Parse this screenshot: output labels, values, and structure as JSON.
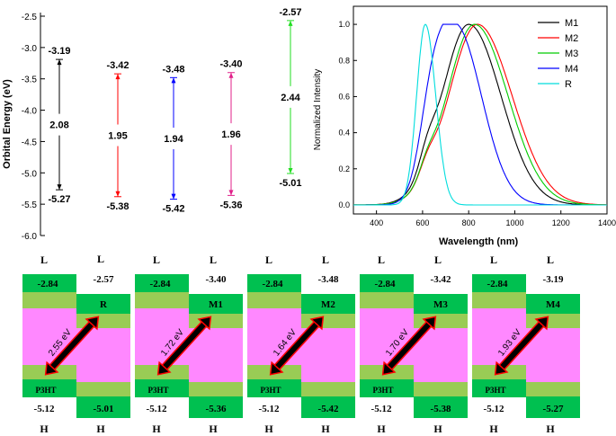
{
  "chart_data": [
    {
      "type": "energy-level diagram",
      "ylabel": "Orbital Energy (eV)",
      "ylim": [
        -6.0,
        -2.5
      ],
      "yticks": [
        "-2.5",
        "-3.0",
        "-3.5",
        "-4.0",
        "-4.5",
        "-5.0",
        "-5.5",
        "-6.0"
      ],
      "molecules": [
        {
          "lumo": -3.19,
          "homo": -5.27,
          "gap": 2.08,
          "lumo_label": "-3.19",
          "homo_label": "-5.27",
          "gap_label": "2.08",
          "color": "#000000"
        },
        {
          "lumo": -3.42,
          "homo": -5.38,
          "gap": 1.95,
          "lumo_label": "-3.42",
          "homo_label": "-5.38",
          "gap_label": "1.95",
          "color": "#ff0000"
        },
        {
          "lumo": -3.48,
          "homo": -5.42,
          "gap": 1.94,
          "lumo_label": "-3.48",
          "homo_label": "-5.42",
          "gap_label": "1.94",
          "color": "#0000ff"
        },
        {
          "lumo": -3.4,
          "homo": -5.36,
          "gap": 1.96,
          "lumo_label": "-3.40",
          "homo_label": "-5.36",
          "gap_label": "1.96",
          "color": "#e0208a"
        },
        {
          "lumo": -2.57,
          "homo": -5.01,
          "gap": 2.44,
          "lumo_label": "-2.57",
          "homo_label": "-5.01",
          "gap_label": "2.44",
          "color": "#22dd22"
        }
      ]
    },
    {
      "type": "line",
      "xlabel": "Wavelength (nm)",
      "ylabel": "Normalized Intensity",
      "xlim": [
        300,
        1400
      ],
      "ylim": [
        -0.05,
        1.1
      ],
      "xticks": [
        "400",
        "600",
        "800",
        "1000",
        "1200",
        "1400"
      ],
      "yticks": [
        "0.0",
        "0.2",
        "0.4",
        "0.6",
        "0.8",
        "1.0"
      ],
      "legend": "top-right",
      "series": [
        {
          "name": "M1",
          "color": "#000000",
          "peak": 800,
          "sigma_left": 115,
          "sigma_right": 140,
          "shoulder": [
            620,
            0.1,
            35
          ]
        },
        {
          "name": "M2",
          "color": "#ff0000",
          "peak": 838,
          "sigma_left": 125,
          "sigma_right": 150,
          "shoulder": [
            620,
            0.08,
            35
          ]
        },
        {
          "name": "M3",
          "color": "#00cc00",
          "peak": 825,
          "sigma_left": 120,
          "sigma_right": 145,
          "shoulder": [
            620,
            0.08,
            35
          ]
        },
        {
          "name": "M4",
          "color": "#0000ff",
          "peak": 740,
          "sigma_left": 85,
          "sigma_right": 115,
          "shoulder": [
            635,
            0.3,
            50
          ]
        },
        {
          "name": "R",
          "color": "#00dddd",
          "peak": 612,
          "sigma_left": 38,
          "sigma_right": 45,
          "shoulder": [
            0,
            0,
            1
          ]
        }
      ]
    },
    {
      "type": "band alignment",
      "panels": [
        {
          "acceptor": "R",
          "lumo_label": "-2.57",
          "homo_label": "-5.01",
          "gap_label": "2.55 eV"
        },
        {
          "acceptor": "M1",
          "lumo_label": "-3.40",
          "homo_label": "-5.36",
          "gap_label": "1.72 eV"
        },
        {
          "acceptor": "M2",
          "lumo_label": "-3.48",
          "homo_label": "-5.42",
          "gap_label": "1.64 eV"
        },
        {
          "acceptor": "M3",
          "lumo_label": "-3.42",
          "homo_label": "-5.38",
          "gap_label": "1.70 eV"
        },
        {
          "acceptor": "M4",
          "lumo_label": "-3.19",
          "homo_label": "-5.27",
          "gap_label": "1.93 eV"
        }
      ],
      "donor": {
        "name": "P3HT",
        "lumo_label": "-2.84",
        "homo_label": "-5.12"
      },
      "L_label": "L",
      "H_label": "H"
    }
  ]
}
